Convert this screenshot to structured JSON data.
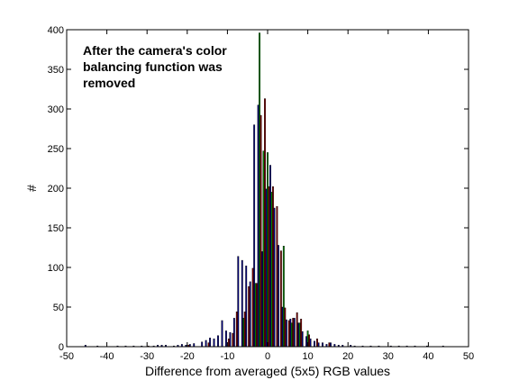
{
  "chart_data": {
    "type": "bar",
    "xlabel": "Difference from averaged (5x5) RGB values",
    "ylabel": "#",
    "xlim": [
      -50,
      50
    ],
    "ylim": [
      0,
      400
    ],
    "xticks": [
      -50,
      -40,
      -30,
      -20,
      -10,
      0,
      10,
      20,
      30,
      40,
      50
    ],
    "yticks": [
      0,
      50,
      100,
      150,
      200,
      250,
      300,
      350,
      400
    ],
    "annotation": [
      "After the camera's color",
      "balancing function was",
      "removed"
    ],
    "grid": false,
    "legend": "none",
    "bar_width": 0.33,
    "series": [
      {
        "color": "#000080",
        "offset": -0.33,
        "x": [
          -45,
          -42,
          -37,
          -35,
          -33,
          -31,
          -28,
          -27,
          -26,
          -25,
          -23,
          -22,
          -21,
          -20,
          -19,
          -18,
          -16,
          -15,
          -14,
          -13,
          -12,
          -11,
          -10,
          -9,
          -8,
          -7,
          -6,
          -5,
          -4,
          -3,
          -2,
          -1,
          0,
          1,
          2,
          3,
          4,
          5,
          6,
          7,
          8,
          9,
          10,
          11,
          12,
          13,
          14,
          15,
          16,
          17,
          18,
          19,
          21,
          22,
          24,
          26,
          28,
          31,
          33,
          35,
          37,
          40,
          44
        ],
        "values": [
          2,
          1,
          1,
          1,
          1,
          1,
          1,
          2,
          2,
          2,
          1,
          2,
          3,
          2,
          3,
          4,
          6,
          8,
          11,
          10,
          14,
          33,
          20,
          18,
          36,
          114,
          109,
          102,
          82,
          280,
          305,
          120,
          199,
          229,
          175,
          128,
          50,
          34,
          35,
          36,
          30,
          19,
          13,
          10,
          7,
          5,
          5,
          3,
          5,
          3,
          2,
          2,
          2,
          1,
          1,
          1,
          1,
          1,
          1,
          1,
          1,
          1,
          1
        ]
      },
      {
        "color": "#008000",
        "offset": 0,
        "x": [
          -6,
          -3,
          -2,
          -1,
          0,
          1,
          4,
          6,
          8,
          10
        ],
        "values": [
          36,
          80,
          396,
          247,
          245,
          195,
          127,
          30,
          30,
          20
        ]
      },
      {
        "color": "#800000",
        "offset": 0.33,
        "x": [
          -30,
          -20,
          -15,
          -10,
          -9,
          -8,
          -6,
          -5,
          -4,
          -3,
          -2,
          -1,
          0,
          1,
          2,
          3,
          4,
          5,
          6,
          7,
          8,
          10,
          12,
          15
        ],
        "values": [
          1,
          2,
          5,
          10,
          17,
          44,
          44,
          76,
          99,
          80,
          292,
          313,
          202,
          202,
          177,
          121,
          49,
          33,
          36,
          43,
          35,
          15,
          10,
          5
        ]
      }
    ]
  }
}
